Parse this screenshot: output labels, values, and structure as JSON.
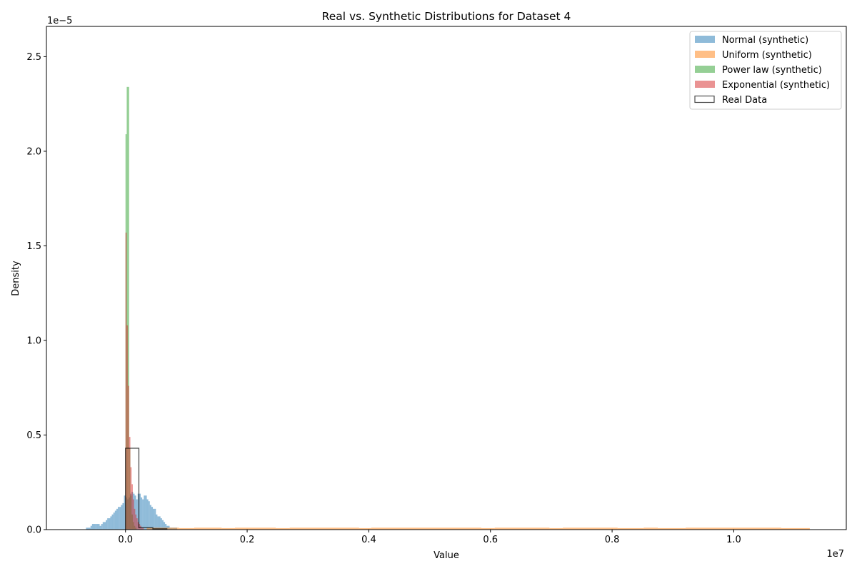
{
  "chart_data": {
    "type": "histogram",
    "title": "Real vs. Synthetic Distributions for Dataset 4",
    "xlabel": "Value",
    "ylabel": "Density",
    "x_offset_label": "1e7",
    "y_offset_label": "1e−5",
    "x_scale": 10000000,
    "y_scale": 1e-05,
    "xlim": [
      -1300000,
      11850000
    ],
    "ylim": [
      0,
      2.66e-05
    ],
    "x_ticks": [
      0,
      2000000,
      4000000,
      6000000,
      8000000,
      10000000
    ],
    "x_tick_labels": [
      "0.0",
      "0.2",
      "0.4",
      "0.6",
      "0.8",
      "1.0"
    ],
    "y_ticks": [
      0,
      5e-06,
      1e-05,
      1.5e-05,
      2e-05,
      2.5e-05
    ],
    "y_tick_labels": [
      "0.0",
      "0.5",
      "1.0",
      "1.5",
      "2.0",
      "2.5"
    ],
    "grid": false,
    "legend_position": "top-right",
    "series": [
      {
        "name": "Normal (synthetic)",
        "color": "#1f77b4",
        "opacity": 0.5,
        "style": "filled",
        "bin_start": -650000,
        "bin_width": 25000,
        "values": [
          1e-07,
          1e-07,
          1e-07,
          2e-07,
          3e-07,
          3e-07,
          3e-07,
          3e-07,
          3e-07,
          2e-07,
          3e-07,
          4e-07,
          4e-07,
          5e-07,
          6e-07,
          6e-07,
          7e-07,
          8e-07,
          9e-07,
          1e-06,
          1.1e-06,
          1.2e-06,
          1.2e-06,
          1.3e-06,
          1.4e-06,
          1.8e-06,
          1.7e-06,
          1.6e-06,
          1.7e-06,
          1.9e-06,
          2e-06,
          1.9e-06,
          1.8e-06,
          1.6e-06,
          1.9e-06,
          1.9e-06,
          1.7e-06,
          1.6e-06,
          1.8e-06,
          1.8e-06,
          1.6e-06,
          1.5e-06,
          1.3e-06,
          1.2e-06,
          1.1e-06,
          1.1e-06,
          8e-07,
          7e-07,
          7e-07,
          6e-07,
          5e-07,
          4e-07,
          3e-07,
          2e-07,
          2e-07,
          1e-07,
          1e-07,
          1e-07,
          1e-07,
          1e-07
        ]
      },
      {
        "name": "Uniform (synthetic)",
        "color": "#ff7f0e",
        "opacity": 0.5,
        "style": "filled",
        "bins": [
          [
            350000,
            880000,
            1e-07
          ],
          [
            880000,
            1130000,
            8e-08
          ],
          [
            1130000,
            1580000,
            1e-07
          ],
          [
            1580000,
            1800000,
            8e-08
          ],
          [
            1800000,
            2470000,
            1e-07
          ],
          [
            2470000,
            2700000,
            8e-08
          ],
          [
            2700000,
            3840000,
            1e-07
          ],
          [
            3840000,
            4040000,
            8e-08
          ],
          [
            4040000,
            5850000,
            1e-07
          ],
          [
            5850000,
            6070000,
            8e-08
          ],
          [
            6070000,
            6970000,
            1e-07
          ],
          [
            6970000,
            7190000,
            8e-08
          ],
          [
            7190000,
            8090000,
            1e-07
          ],
          [
            8090000,
            8520000,
            8e-08
          ],
          [
            8520000,
            8750000,
            1e-07
          ],
          [
            8750000,
            9210000,
            8e-08
          ],
          [
            9210000,
            10780000,
            1e-07
          ],
          [
            10780000,
            11250000,
            8e-08
          ]
        ]
      },
      {
        "name": "Power law (synthetic)",
        "color": "#2ca02c",
        "opacity": 0.5,
        "style": "filled",
        "bin_start": 0,
        "bin_width": 20000,
        "values": [
          2.09e-05,
          2.34e-05,
          2.34e-05,
          4.3e-06,
          1.8e-06,
          8e-07,
          4e-07,
          2e-07,
          1e-07
        ]
      },
      {
        "name": "Exponential (synthetic)",
        "color": "#d62728",
        "opacity": 0.5,
        "style": "filled",
        "bin_start": 0,
        "bin_width": 20000,
        "values": [
          1.57e-05,
          1.08e-05,
          7.6e-06,
          4.9e-06,
          3.3e-06,
          2.4e-06,
          1.6e-06,
          1.1e-06,
          8e-07,
          6e-07,
          4e-07,
          3e-07,
          2e-07,
          1e-07,
          1e-07
        ]
      },
      {
        "name": "Real Data",
        "color": "#000000",
        "opacity": 0.7,
        "style": "step",
        "bins": [
          [
            0,
            220000,
            4.3e-06
          ],
          [
            220000,
            450000,
            1e-07
          ],
          [
            450000,
            680000,
            4e-08
          ]
        ]
      }
    ]
  }
}
